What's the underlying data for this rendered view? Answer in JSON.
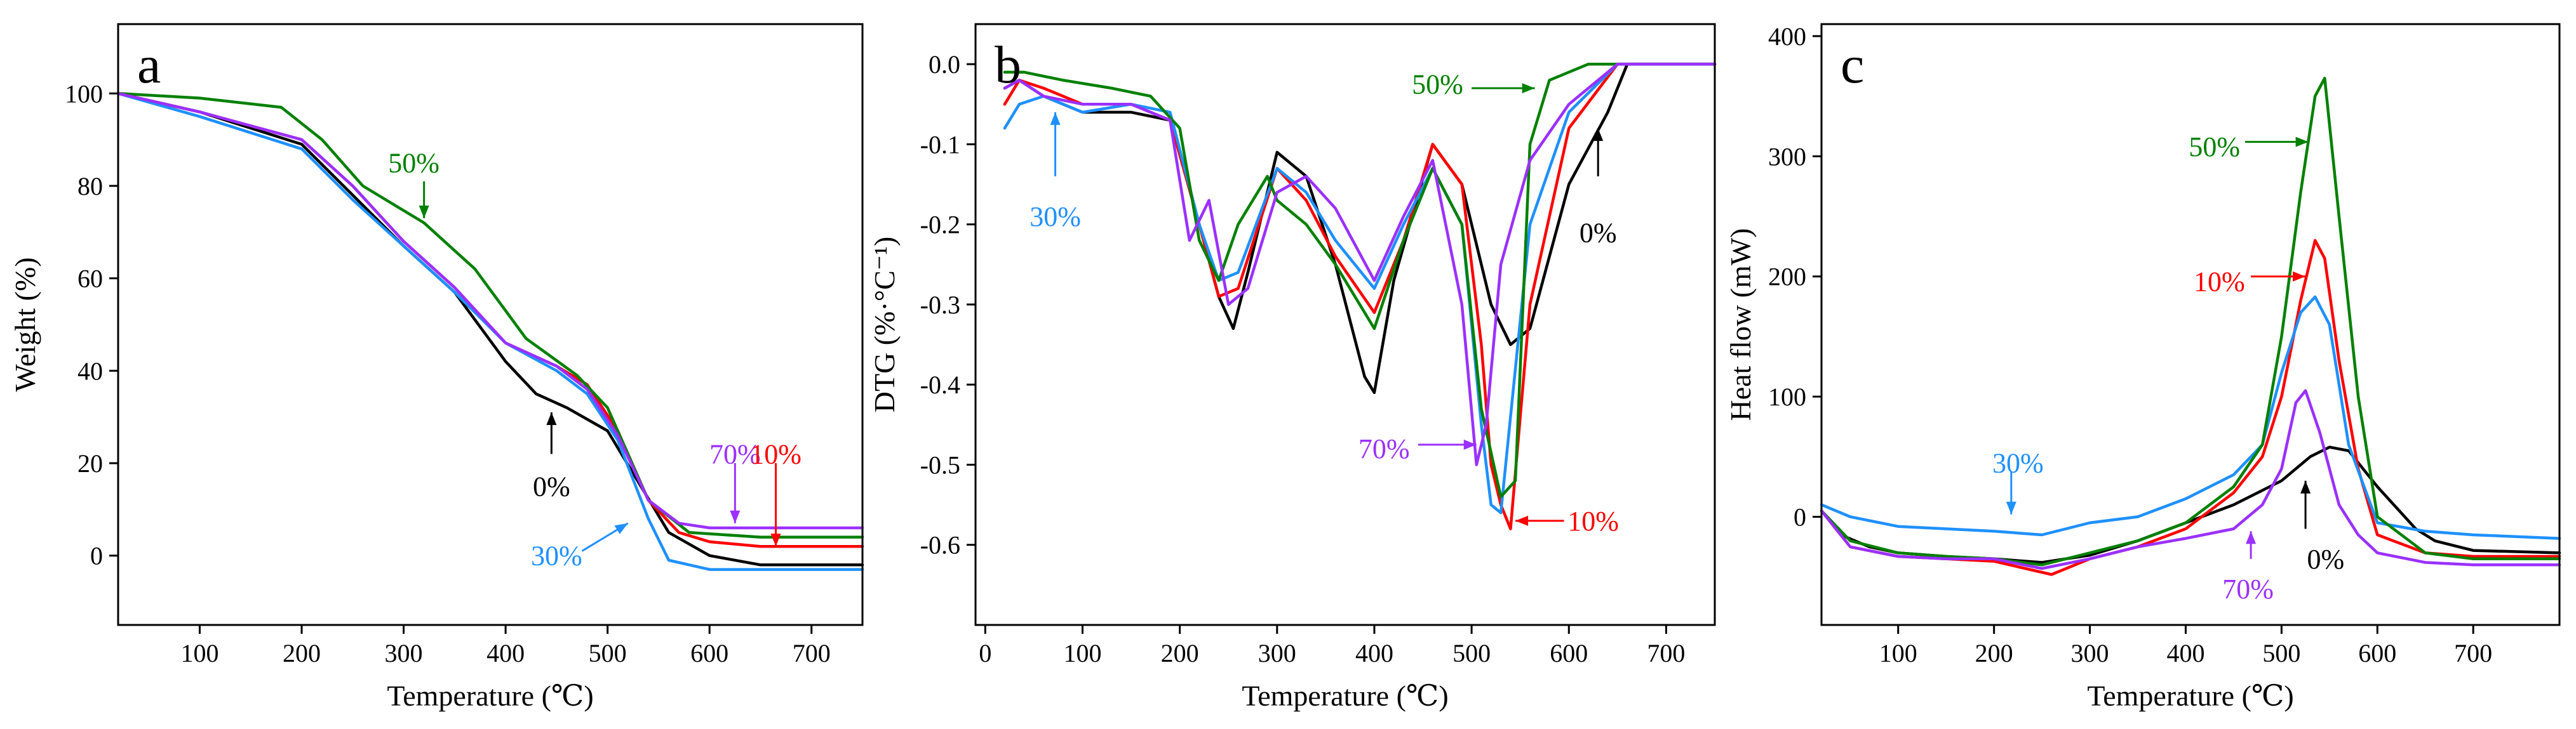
{
  "chart_data": [
    {
      "type": "line",
      "panel_letter": "a",
      "xlabel": "Temperature (℃)",
      "ylabel": "Weight (%)",
      "xlim": [
        20,
        750
      ],
      "ylim": [
        -15,
        115
      ],
      "xticks": [
        100,
        200,
        300,
        400,
        500,
        600,
        700
      ],
      "yticks": [
        0,
        20,
        40,
        60,
        80,
        100
      ],
      "series": [
        {
          "name": "0%",
          "color": "#000000",
          "x": [
            20,
            100,
            200,
            250,
            300,
            350,
            400,
            430,
            460,
            500,
            530,
            560,
            600,
            650,
            750
          ],
          "y": [
            100,
            96,
            89,
            78,
            67,
            57,
            42,
            35,
            32,
            27,
            16,
            5,
            0,
            -2,
            -2
          ]
        },
        {
          "name": "10%",
          "color": "#ff0000",
          "x": [
            20,
            100,
            200,
            250,
            300,
            350,
            400,
            450,
            480,
            510,
            540,
            570,
            600,
            650,
            750
          ],
          "y": [
            100,
            96,
            90,
            80,
            68,
            58,
            46,
            41,
            37,
            27,
            12,
            5,
            3,
            2,
            2
          ]
        },
        {
          "name": "30%",
          "color": "#1e90ff",
          "x": [
            20,
            100,
            200,
            250,
            300,
            350,
            400,
            450,
            480,
            510,
            540,
            560,
            600,
            650,
            750
          ],
          "y": [
            100,
            95,
            88,
            77,
            67,
            57,
            46,
            40,
            35,
            25,
            8,
            -1,
            -3,
            -3,
            -3
          ]
        },
        {
          "name": "50%",
          "color": "#008000",
          "x": [
            20,
            100,
            180,
            220,
            260,
            320,
            370,
            420,
            470,
            500,
            540,
            580,
            650,
            750
          ],
          "y": [
            100,
            99,
            97,
            90,
            80,
            72,
            62,
            47,
            39,
            32,
            12,
            5,
            4,
            4
          ]
        },
        {
          "name": "70%",
          "color": "#9b30ff",
          "x": [
            20,
            100,
            200,
            250,
            300,
            350,
            400,
            450,
            480,
            510,
            540,
            570,
            600,
            650,
            750
          ],
          "y": [
            100,
            96,
            90,
            80,
            68,
            58,
            46,
            41,
            36,
            26,
            12,
            7,
            6,
            6,
            6
          ]
        }
      ],
      "annotations": [
        {
          "text": "50%",
          "color": "#008000",
          "tx": 310,
          "ty": 85,
          "arrow": [
            [
              320,
              81
            ],
            [
              320,
              73
            ]
          ]
        },
        {
          "text": "0%",
          "color": "#000000",
          "tx": 445,
          "ty": 15,
          "arrow": [
            [
              445,
              22
            ],
            [
              445,
              31
            ]
          ]
        },
        {
          "text": "70%",
          "color": "#9b30ff",
          "tx": 625,
          "ty": 22,
          "arrow": [
            [
              625,
              20
            ],
            [
              625,
              7
            ]
          ]
        },
        {
          "text": "10%",
          "color": "#ff0000",
          "tx": 665,
          "ty": 22,
          "arrow": [
            [
              665,
              20
            ],
            [
              665,
              2
            ]
          ]
        },
        {
          "text": "30%",
          "color": "#1e90ff",
          "tx": 450,
          "ty": 0,
          "arrow": [
            [
              475,
              1
            ],
            [
              520,
              7
            ]
          ]
        }
      ]
    },
    {
      "type": "line",
      "panel_letter": "b",
      "xlabel": "Temperature (℃)",
      "ylabel": "DTG (%·°C⁻¹)",
      "xlim": [
        -10,
        750
      ],
      "ylim": [
        -0.7,
        0.05
      ],
      "xticks": [
        0,
        100,
        200,
        300,
        400,
        500,
        600,
        700
      ],
      "yticks": [
        0.0,
        -0.1,
        -0.2,
        -0.3,
        -0.4,
        -0.5,
        -0.6
      ],
      "series": [
        {
          "name": "0%",
          "color": "#000000",
          "x": [
            20,
            35,
            60,
            100,
            150,
            190,
            220,
            240,
            255,
            270,
            300,
            330,
            360,
            390,
            400,
            420,
            460,
            490,
            520,
            540,
            560,
            600,
            640,
            660,
            750
          ],
          "y": [
            -0.03,
            -0.02,
            -0.04,
            -0.06,
            -0.06,
            -0.07,
            -0.2,
            -0.29,
            -0.33,
            -0.26,
            -0.11,
            -0.14,
            -0.25,
            -0.39,
            -0.41,
            -0.27,
            -0.1,
            -0.15,
            -0.3,
            -0.35,
            -0.33,
            -0.15,
            -0.06,
            0.0,
            0.0
          ]
        },
        {
          "name": "10%",
          "color": "#ff0000",
          "x": [
            20,
            35,
            60,
            100,
            150,
            190,
            220,
            240,
            260,
            300,
            330,
            360,
            400,
            430,
            460,
            490,
            510,
            520,
            530,
            540,
            560,
            600,
            650,
            750
          ],
          "y": [
            -0.05,
            -0.02,
            -0.03,
            -0.05,
            -0.05,
            -0.07,
            -0.2,
            -0.29,
            -0.28,
            -0.13,
            -0.17,
            -0.24,
            -0.31,
            -0.22,
            -0.1,
            -0.15,
            -0.35,
            -0.5,
            -0.55,
            -0.58,
            -0.3,
            -0.08,
            0.0,
            0.0
          ]
        },
        {
          "name": "30%",
          "color": "#1e90ff",
          "x": [
            20,
            35,
            60,
            100,
            150,
            190,
            220,
            240,
            260,
            300,
            330,
            360,
            400,
            430,
            460,
            490,
            510,
            520,
            530,
            560,
            600,
            650,
            750
          ],
          "y": [
            -0.08,
            -0.05,
            -0.04,
            -0.06,
            -0.05,
            -0.06,
            -0.2,
            -0.27,
            -0.26,
            -0.13,
            -0.16,
            -0.22,
            -0.28,
            -0.2,
            -0.13,
            -0.2,
            -0.45,
            -0.55,
            -0.56,
            -0.2,
            -0.06,
            0.0,
            0.0
          ]
        },
        {
          "name": "50%",
          "color": "#008000",
          "x": [
            20,
            40,
            80,
            130,
            170,
            200,
            220,
            240,
            260,
            290,
            300,
            330,
            360,
            400,
            430,
            460,
            490,
            510,
            530,
            545,
            560,
            580,
            620,
            750
          ],
          "y": [
            -0.01,
            -0.01,
            -0.02,
            -0.03,
            -0.04,
            -0.08,
            -0.22,
            -0.27,
            -0.2,
            -0.14,
            -0.17,
            -0.2,
            -0.25,
            -0.33,
            -0.22,
            -0.13,
            -0.2,
            -0.43,
            -0.54,
            -0.52,
            -0.1,
            -0.02,
            0.0,
            0.0
          ]
        },
        {
          "name": "70%",
          "color": "#9b30ff",
          "x": [
            20,
            35,
            60,
            100,
            150,
            190,
            210,
            230,
            250,
            270,
            300,
            330,
            360,
            400,
            430,
            460,
            490,
            505,
            515,
            530,
            560,
            600,
            650,
            750
          ],
          "y": [
            -0.03,
            -0.02,
            -0.04,
            -0.05,
            -0.05,
            -0.07,
            -0.22,
            -0.17,
            -0.3,
            -0.28,
            -0.16,
            -0.14,
            -0.18,
            -0.27,
            -0.19,
            -0.12,
            -0.3,
            -0.5,
            -0.45,
            -0.25,
            -0.12,
            -0.05,
            0.0,
            0.0
          ]
        }
      ],
      "annotations": [
        {
          "text": "50%",
          "color": "#008000",
          "tx": 465,
          "ty": -0.025,
          "arrow": [
            [
              500,
              -0.03
            ],
            [
              565,
              -0.03
            ]
          ]
        },
        {
          "text": "30%",
          "color": "#1e90ff",
          "tx": 72,
          "ty": -0.19,
          "arrow": [
            [
              72,
              -0.14
            ],
            [
              72,
              -0.06
            ]
          ]
        },
        {
          "text": "0%",
          "color": "#000000",
          "tx": 630,
          "ty": -0.21,
          "arrow": [
            [
              630,
              -0.14
            ],
            [
              630,
              -0.08
            ]
          ]
        },
        {
          "text": "70%",
          "color": "#9b30ff",
          "tx": 410,
          "ty": -0.48,
          "arrow": [
            [
              445,
              -0.475
            ],
            [
              505,
              -0.475
            ]
          ]
        },
        {
          "text": "10%",
          "color": "#ff0000",
          "tx": 625,
          "ty": -0.57,
          "arrow": [
            [
              595,
              -0.57
            ],
            [
              545,
              -0.57
            ]
          ]
        }
      ]
    },
    {
      "type": "line",
      "panel_letter": "c",
      "xlabel": "Temperature (℃)",
      "ylabel": "Heat flow (mW)",
      "xlim": [
        20,
        790
      ],
      "ylim": [
        -90,
        410
      ],
      "xticks": [
        100,
        200,
        300,
        400,
        500,
        600,
        700
      ],
      "yticks": [
        0,
        100,
        200,
        300,
        400
      ],
      "series": [
        {
          "name": "0%",
          "color": "#000000",
          "x": [
            20,
            40,
            70,
            100,
            150,
            200,
            250,
            300,
            350,
            400,
            450,
            500,
            530,
            550,
            570,
            600,
            640,
            660,
            700,
            790
          ],
          "y": [
            5,
            -15,
            -25,
            -30,
            -33,
            -35,
            -38,
            -32,
            -20,
            -5,
            10,
            30,
            50,
            58,
            55,
            25,
            -10,
            -20,
            -28,
            -30
          ]
        },
        {
          "name": "10%",
          "color": "#ff0000",
          "x": [
            20,
            50,
            100,
            150,
            200,
            260,
            300,
            350,
            400,
            450,
            480,
            500,
            520,
            535,
            545,
            560,
            580,
            600,
            650,
            700,
            790
          ],
          "y": [
            5,
            -25,
            -33,
            -35,
            -37,
            -48,
            -35,
            -25,
            -10,
            20,
            50,
            100,
            180,
            230,
            215,
            130,
            40,
            -15,
            -30,
            -33,
            -33
          ]
        },
        {
          "name": "30%",
          "color": "#1e90ff",
          "x": [
            20,
            50,
            100,
            150,
            200,
            250,
            300,
            350,
            400,
            450,
            480,
            500,
            520,
            535,
            550,
            570,
            600,
            650,
            700,
            790
          ],
          "y": [
            10,
            0,
            -8,
            -10,
            -12,
            -15,
            -5,
            0,
            15,
            35,
            60,
            120,
            170,
            183,
            160,
            60,
            -5,
            -12,
            -15,
            -18
          ]
        },
        {
          "name": "50%",
          "color": "#008000",
          "x": [
            20,
            50,
            100,
            150,
            200,
            250,
            300,
            350,
            400,
            450,
            480,
            500,
            520,
            535,
            545,
            560,
            580,
            600,
            650,
            700,
            790
          ],
          "y": [
            5,
            -20,
            -30,
            -33,
            -35,
            -40,
            -30,
            -20,
            -5,
            25,
            60,
            150,
            270,
            350,
            365,
            250,
            100,
            0,
            -30,
            -35,
            -35
          ]
        },
        {
          "name": "70%",
          "color": "#9b30ff",
          "x": [
            20,
            50,
            100,
            150,
            200,
            250,
            300,
            350,
            400,
            450,
            480,
            500,
            515,
            525,
            540,
            560,
            580,
            600,
            650,
            700,
            790
          ],
          "y": [
            5,
            -25,
            -33,
            -35,
            -35,
            -43,
            -35,
            -25,
            -18,
            -10,
            10,
            40,
            95,
            105,
            70,
            10,
            -15,
            -30,
            -38,
            -40,
            -40
          ]
        }
      ],
      "annotations": [
        {
          "text": "50%",
          "color": "#008000",
          "tx": 430,
          "ty": 308,
          "arrow": [
            [
              462,
              312
            ],
            [
              528,
              312
            ]
          ]
        },
        {
          "text": "10%",
          "color": "#ff0000",
          "tx": 435,
          "ty": 196,
          "arrow": [
            [
              468,
              200
            ],
            [
              525,
              200
            ]
          ]
        },
        {
          "text": "30%",
          "color": "#1e90ff",
          "tx": 225,
          "ty": 45,
          "arrow": [
            [
              218,
              38
            ],
            [
              218,
              2
            ]
          ]
        },
        {
          "text": "0%",
          "color": "#000000",
          "tx": 546,
          "ty": -35,
          "arrow": [
            [
              525,
              -10
            ],
            [
              525,
              30
            ]
          ]
        },
        {
          "text": "70%",
          "color": "#9b30ff",
          "tx": 465,
          "ty": -60,
          "arrow": [
            [
              468,
              -35
            ],
            [
              468,
              -12
            ]
          ]
        }
      ]
    }
  ]
}
